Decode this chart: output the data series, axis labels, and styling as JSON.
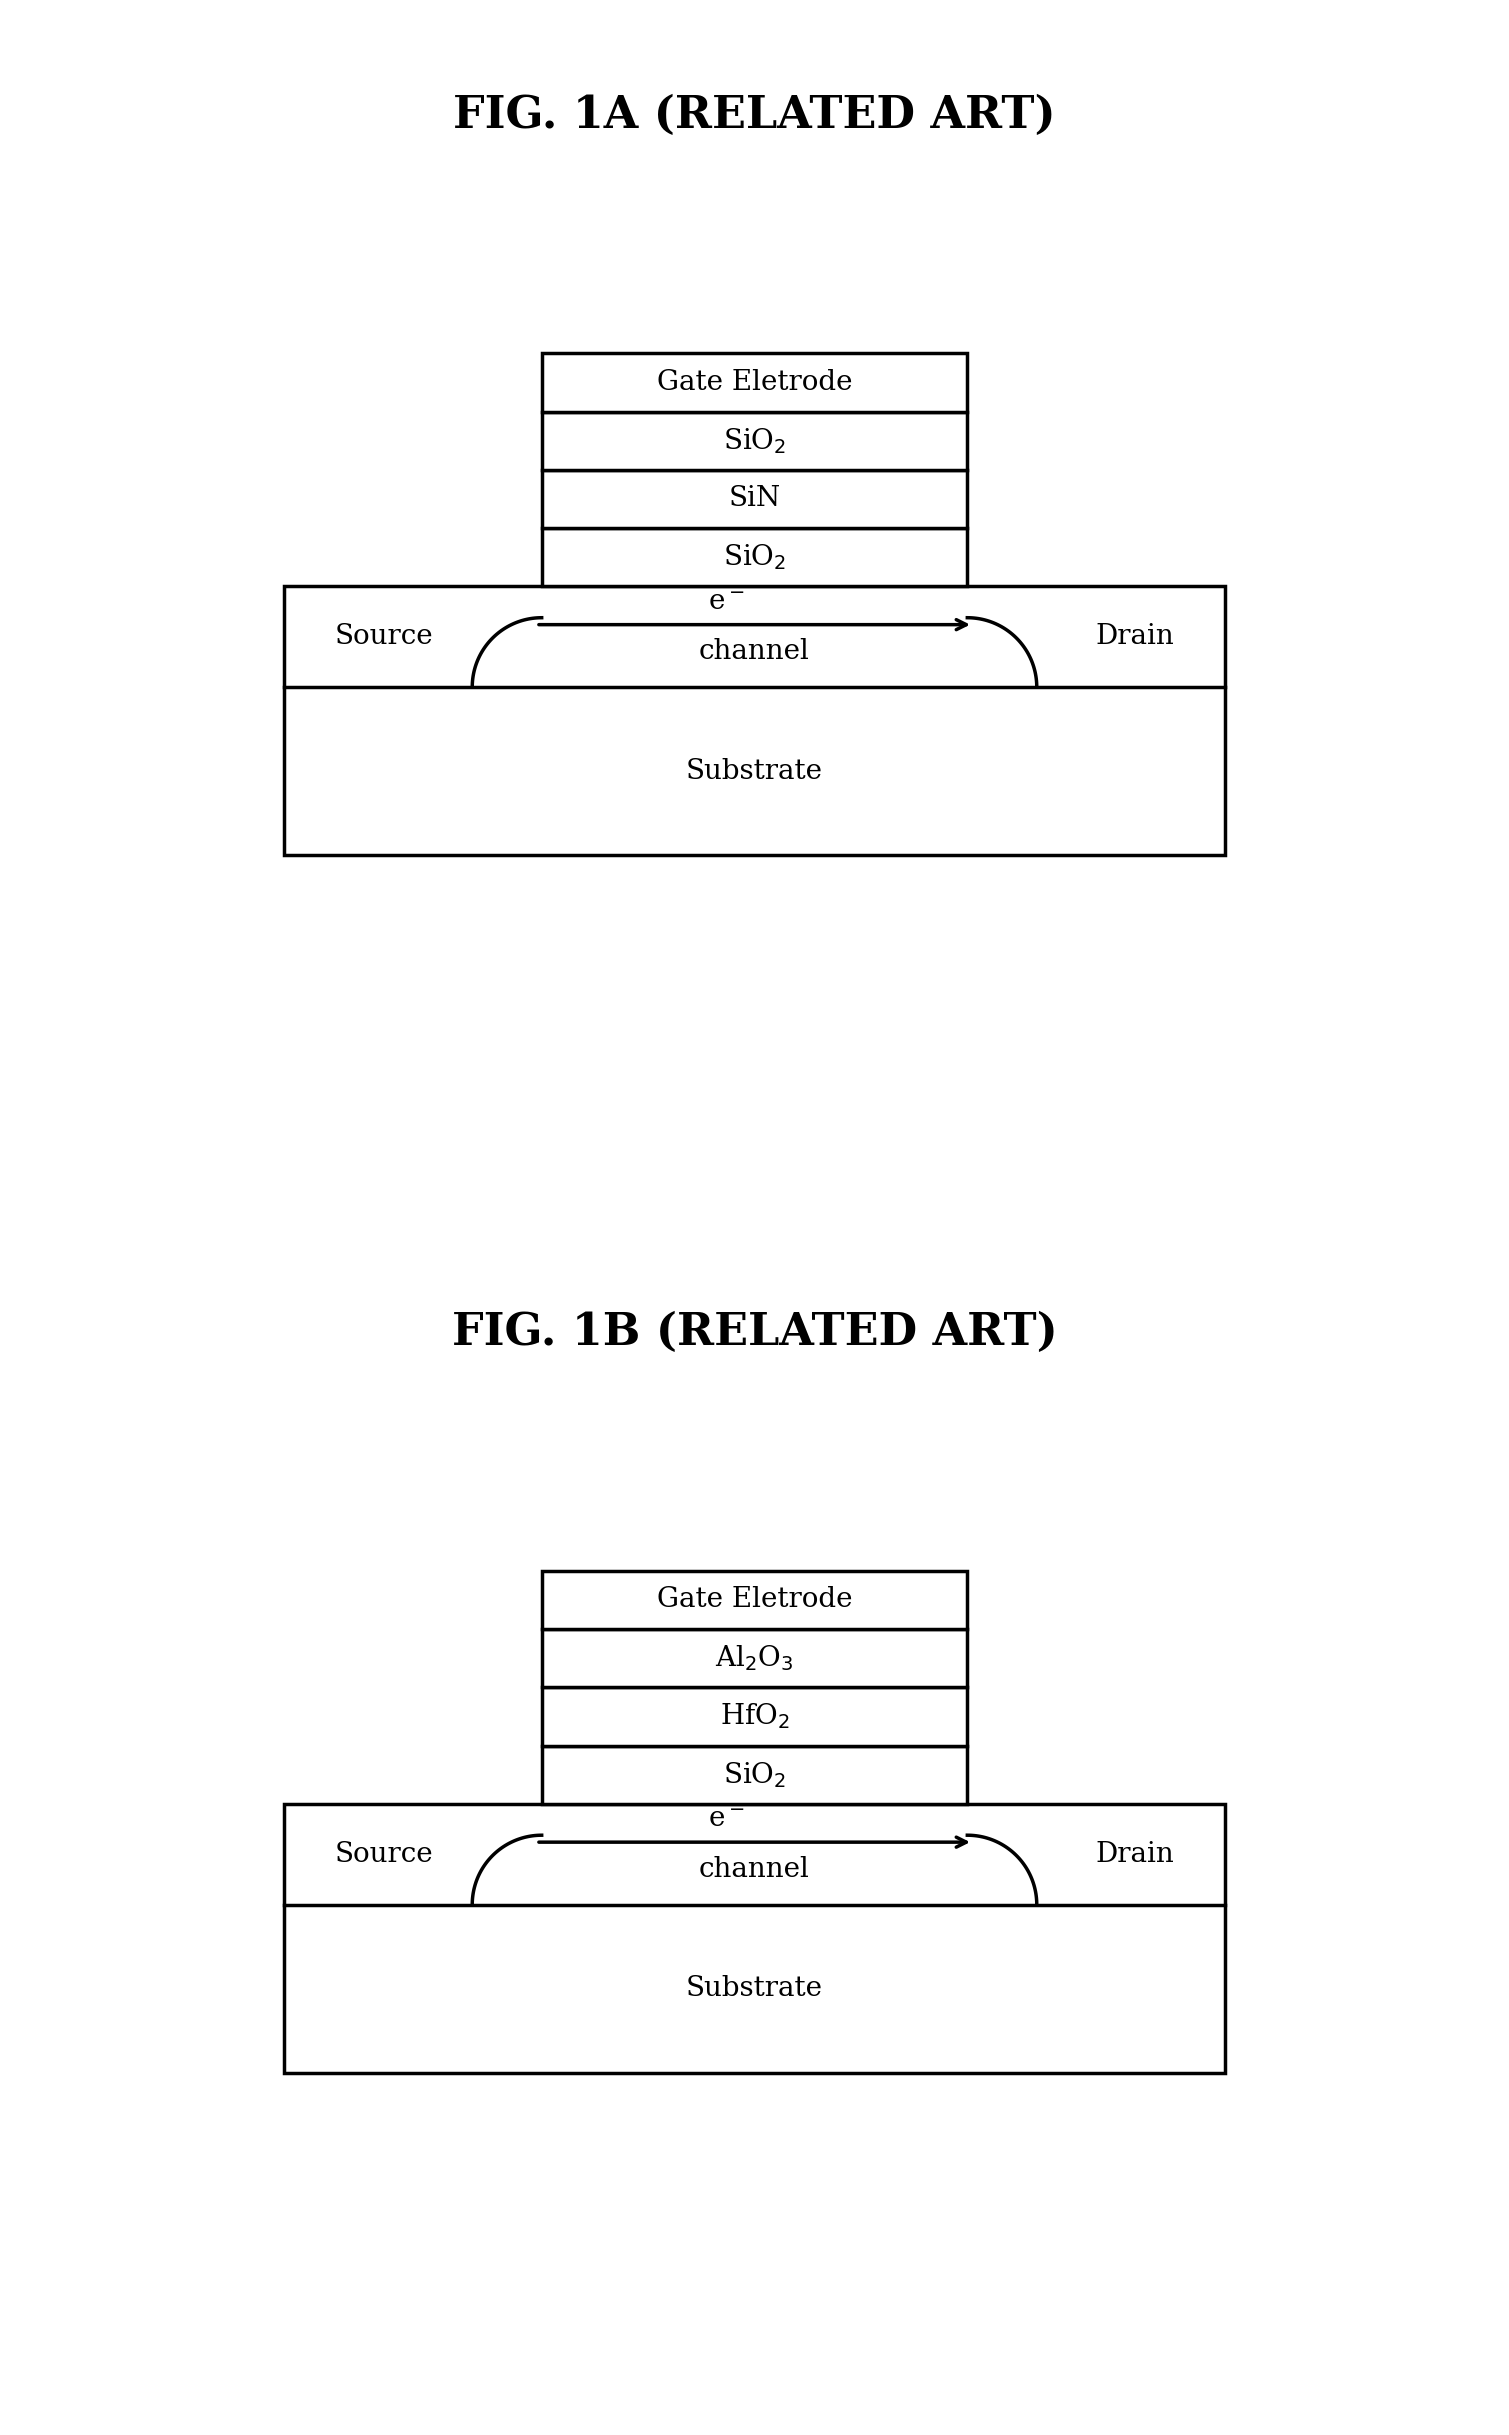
{
  "fig_width": 15.09,
  "fig_height": 24.35,
  "bg_color": "#ffffff",
  "fig1a_title": "FIG. 1A (RELATED ART)",
  "fig1b_title": "FIG. 1B (RELATED ART)",
  "fig1a_layers": [
    "SiO$_2$",
    "SiN",
    "SiO$_2$",
    "Gate Eletrode"
  ],
  "fig1b_layers": [
    "SiO$_2$",
    "HfO$_2$",
    "Al$_2$O$_3$",
    "Gate Eletrode"
  ],
  "source_label": "Source",
  "drain_label": "Drain",
  "substrate_label": "Substrate",
  "channel_label": "channel",
  "electron_label": "e$^-$",
  "lw": 2.5,
  "title_fontsize": 32,
  "layer_fontsize": 20,
  "label_fontsize": 20
}
